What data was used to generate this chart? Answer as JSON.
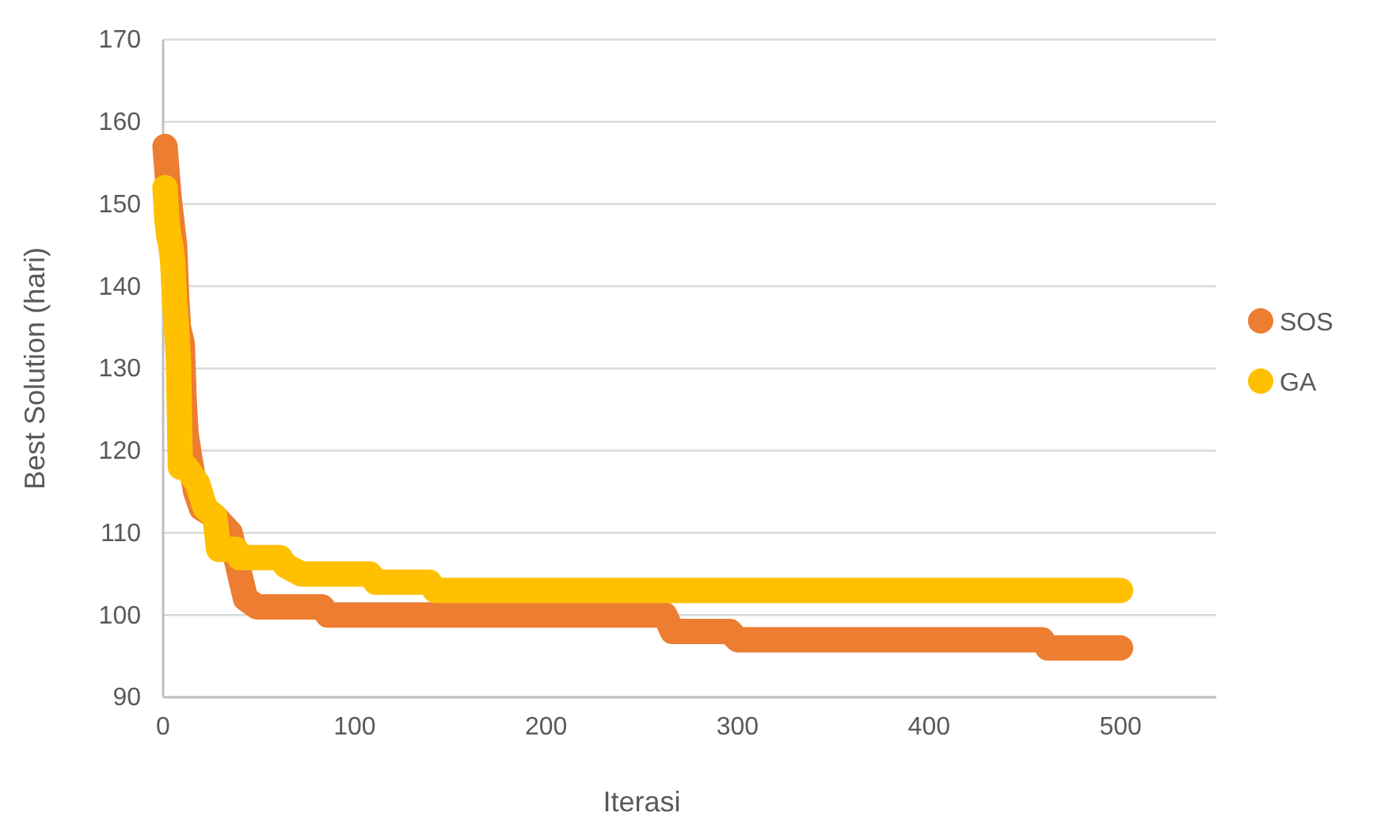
{
  "chart_data": {
    "type": "line",
    "xlabel": "Iterasi",
    "ylabel": "Best Solution (hari)",
    "xlim": [
      0,
      550
    ],
    "xticks": [
      0,
      100,
      200,
      300,
      400,
      500
    ],
    "ylim": [
      90,
      170
    ],
    "yticks": [
      90,
      100,
      110,
      120,
      130,
      140,
      150,
      160,
      170
    ],
    "grid": "y",
    "legend": "right",
    "line_style": "solid",
    "marker": "none",
    "series": [
      {
        "name": "SOS",
        "color": "#ed7d31",
        "x": [
          1,
          3,
          4,
          6,
          7,
          8,
          10,
          11,
          12,
          14,
          17,
          20,
          27,
          35,
          40,
          43,
          49,
          83,
          86,
          262,
          266,
          296,
          300,
          459,
          462,
          500
        ],
        "values": [
          157,
          151,
          149,
          145,
          139,
          135,
          133,
          126,
          122,
          119,
          115,
          113,
          112,
          110,
          105,
          102,
          101,
          101,
          100,
          100,
          98,
          98,
          97,
          97,
          96,
          96
        ]
      },
      {
        "name": "GA",
        "color": "#ffc000",
        "x": [
          1,
          2,
          3,
          4,
          5,
          6,
          7,
          8,
          9,
          12,
          18,
          22,
          27,
          29,
          38,
          40,
          61,
          64,
          72,
          108,
          111,
          139,
          142,
          500
        ],
        "values": [
          152,
          148,
          146,
          145,
          143,
          138,
          135,
          131,
          118,
          118,
          116,
          113,
          112,
          108,
          108,
          107,
          107,
          106,
          105,
          105,
          104,
          104,
          103,
          103
        ]
      }
    ]
  }
}
